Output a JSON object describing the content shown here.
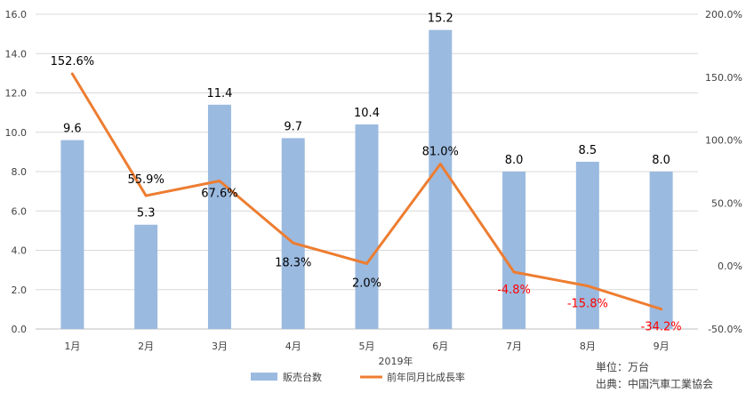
{
  "chart_data": {
    "type": "bar",
    "categories": [
      "1月",
      "2月",
      "3月",
      "4月",
      "5月",
      "6月",
      "7月",
      "8月",
      "9月"
    ],
    "series": [
      {
        "name": "販売台数",
        "type": "bar",
        "axis": "left",
        "values": [
          9.6,
          5.3,
          11.4,
          9.7,
          10.4,
          15.2,
          8.0,
          8.5,
          8.0
        ],
        "labels": [
          "9.6",
          "5.3",
          "11.4",
          "9.7",
          "10.4",
          "15.2",
          "8.0",
          "8.5",
          "8.0"
        ],
        "color": "#9bbae0"
      },
      {
        "name": "前年同月比成長率",
        "type": "line",
        "axis": "right",
        "values": [
          152.6,
          55.9,
          67.6,
          18.3,
          2.0,
          81.0,
          -4.8,
          -15.8,
          -34.2
        ],
        "labels": [
          "152.6%",
          "55.9%",
          "67.6%",
          "18.3%",
          "2.0%",
          "81.0%",
          "-4.8%",
          "-15.8%",
          "-34.2%"
        ],
        "color": "#ed7d31"
      }
    ],
    "xlabel": "2019年",
    "ylim_left": [
      0,
      16
    ],
    "yticks_left": [
      "0.0",
      "2.0",
      "4.0",
      "6.0",
      "8.0",
      "10.0",
      "12.0",
      "14.0",
      "16.0"
    ],
    "ylim_right": [
      -50,
      200
    ],
    "yticks_right": [
      "-50.0%",
      "0.0%",
      "50.0%",
      "100.0%",
      "150.0%",
      "200.0%"
    ],
    "grid": true,
    "legend_position": "bottom",
    "negative_label_color": "#ff0000",
    "notes": [
      "単位：万台",
      "出典：中国汽車工業協会"
    ]
  }
}
